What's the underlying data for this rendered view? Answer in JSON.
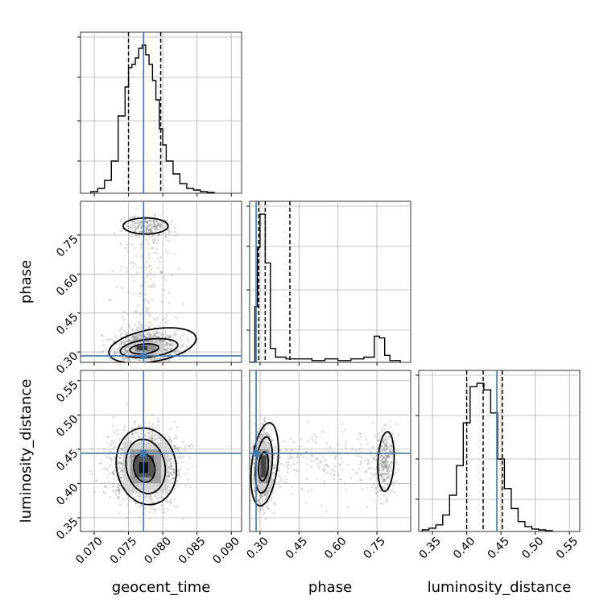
{
  "chart_data": {
    "type": "corner",
    "parameters": [
      {
        "key": "geocent_time",
        "label": "geocent_time",
        "range": [
          0.068,
          0.0915
        ],
        "ticks": [
          0.07,
          0.075,
          0.08,
          0.085,
          0.09
        ],
        "tick_labels": [
          "0.070",
          "0.075",
          "0.080",
          "0.085",
          "0.090"
        ],
        "truth": 0.0772,
        "quantiles": [
          0.075,
          0.0772,
          0.0797
        ]
      },
      {
        "key": "phase",
        "label": "phase",
        "range": [
          0.26,
          0.88
        ],
        "ticks": [
          0.3,
          0.45,
          0.6,
          0.75
        ],
        "tick_labels": [
          "0.30",
          "0.45",
          "0.60",
          "0.75"
        ],
        "truth": 0.285,
        "quantiles": [
          0.295,
          0.32,
          0.415
        ]
      },
      {
        "key": "luminosity_distance",
        "label": "luminosity_distance",
        "range": [
          0.33,
          0.565
        ],
        "ticks": [
          0.35,
          0.4,
          0.45,
          0.5,
          0.55
        ],
        "tick_labels": [
          "0.35",
          "0.40",
          "0.45",
          "0.50",
          "0.55"
        ],
        "truth": 0.444,
        "quantiles": [
          0.4,
          0.424,
          0.452
        ]
      }
    ],
    "histograms": {
      "geocent_time": {
        "bin_edges": [
          0.0695,
          0.0705,
          0.0715,
          0.0725,
          0.0735,
          0.0745,
          0.075,
          0.0755,
          0.076,
          0.0765,
          0.077,
          0.0775,
          0.078,
          0.0785,
          0.079,
          0.0795,
          0.08,
          0.0805,
          0.0815,
          0.0825,
          0.0835,
          0.0845,
          0.0855,
          0.0865,
          0.0875
        ],
        "counts": [
          1,
          3,
          8,
          20,
          48,
          66,
          78,
          80,
          84,
          90,
          92,
          86,
          80,
          70,
          58,
          40,
          30,
          20,
          12,
          6,
          3,
          2,
          1,
          0.5
        ]
      },
      "phase": {
        "bin_edges": [
          0.26,
          0.28,
          0.29,
          0.3,
          0.32,
          0.34,
          0.36,
          0.4,
          0.45,
          0.5,
          0.55,
          0.6,
          0.65,
          0.7,
          0.74,
          0.76,
          0.78,
          0.8,
          0.84
        ],
        "counts": [
          0,
          32,
          66,
          85,
          57,
          8,
          3,
          2,
          2,
          1,
          2,
          1,
          2,
          3,
          15,
          14,
          4,
          1
        ]
      },
      "luminosity_distance": {
        "bin_edges": [
          0.335,
          0.345,
          0.355,
          0.365,
          0.375,
          0.385,
          0.395,
          0.405,
          0.415,
          0.425,
          0.435,
          0.445,
          0.455,
          0.465,
          0.475,
          0.485,
          0.495,
          0.505,
          0.515,
          0.525
        ],
        "counts": [
          1,
          2,
          4,
          10,
          22,
          40,
          66,
          88,
          90,
          86,
          72,
          44,
          26,
          14,
          6,
          3,
          1.5,
          1,
          0.5
        ]
      }
    },
    "pairs": [
      {
        "x": "geocent_time",
        "y": "phase"
      },
      {
        "x": "geocent_time",
        "y": "luminosity_distance"
      },
      {
        "x": "phase",
        "y": "luminosity_distance"
      }
    ],
    "colors": {
      "truth": "#4477aa",
      "contour": "#000000",
      "samples": "#999999",
      "grid": "#b0b0b0"
    },
    "grid": true
  }
}
